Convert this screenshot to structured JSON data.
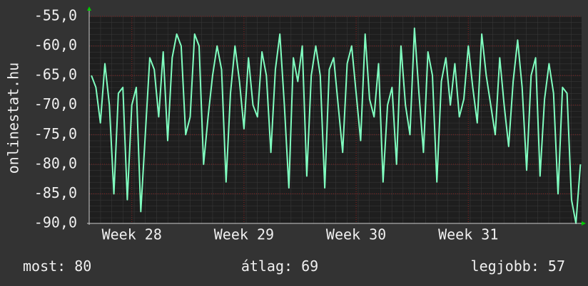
{
  "chart_data": {
    "type": "line",
    "ylabel": "onlinestat.hu",
    "series": [
      {
        "color": "#80ffc0",
        "values": [
          -65,
          -67,
          -73,
          -63,
          -70,
          -85,
          -68,
          -67,
          -86,
          -70,
          -67,
          -88,
          -75,
          -62,
          -64,
          -72,
          -61,
          -76,
          -62,
          -58,
          -60,
          -75,
          -72,
          -58,
          -60,
          -80,
          -72,
          -65,
          -60,
          -64,
          -83,
          -68,
          -60,
          -66,
          -74,
          -62,
          -70,
          -72,
          -61,
          -65,
          -78,
          -64,
          -58,
          -70,
          -84,
          -62,
          -66,
          -60,
          -82,
          -65,
          -60,
          -65,
          -84,
          -64,
          -62,
          -70,
          -78,
          -63,
          -60,
          -68,
          -76,
          -58,
          -69,
          -72,
          -63,
          -83,
          -70,
          -67,
          -80,
          -60,
          -70,
          -75,
          -57,
          -68,
          -78,
          -61,
          -65,
          -83,
          -66,
          -62,
          -70,
          -63,
          -72,
          -69,
          -60,
          -67,
          -73,
          -58,
          -65,
          -70,
          -75,
          -62,
          -70,
          -77,
          -66,
          -59,
          -67,
          -81,
          -65,
          -62,
          -82,
          -69,
          -63,
          -68,
          -85,
          -67,
          -68,
          -86,
          -90,
          -80
        ]
      }
    ],
    "x": [
      27.64,
      27.68,
      27.72,
      27.76,
      27.8,
      27.84,
      27.88,
      27.92,
      27.96,
      28,
      28.04,
      28.08,
      28.12,
      28.16,
      28.2,
      28.24,
      28.28,
      28.32,
      28.36,
      28.4,
      28.44,
      28.48,
      28.52,
      28.56,
      28.6,
      28.64,
      28.68,
      28.72,
      28.76,
      28.8,
      28.84,
      28.88,
      28.92,
      28.96,
      29,
      29.04,
      29.08,
      29.12,
      29.16,
      29.2,
      29.24,
      29.28,
      29.32,
      29.36,
      29.4,
      29.44,
      29.48,
      29.52,
      29.56,
      29.6,
      29.64,
      29.68,
      29.72,
      29.76,
      29.8,
      29.84,
      29.88,
      29.92,
      29.96,
      30,
      30.04,
      30.08,
      30.12,
      30.16,
      30.2,
      30.24,
      30.28,
      30.32,
      30.36,
      30.4,
      30.44,
      30.48,
      30.52,
      30.56,
      30.6,
      30.64,
      30.68,
      30.72,
      30.76,
      30.8,
      30.84,
      30.88,
      30.92,
      30.96,
      31,
      31.04,
      31.08,
      31.12,
      31.16,
      31.2,
      31.24,
      31.28,
      31.32,
      31.36,
      31.4,
      31.44,
      31.48,
      31.52,
      31.56,
      31.6,
      31.64,
      31.68,
      31.72,
      31.76,
      31.8,
      31.84,
      31.88,
      31.92,
      31.96,
      32
    ],
    "xlim": [
      27.62,
      32.01
    ],
    "xticks": [
      {
        "value": 28,
        "label": "Week 28"
      },
      {
        "value": 29,
        "label": "Week 29"
      },
      {
        "value": 30,
        "label": "Week 30"
      },
      {
        "value": 31,
        "label": "Week 31"
      }
    ],
    "ylim": [
      -90,
      -55
    ],
    "yticks": [
      {
        "value": -90,
        "label": "-90,0"
      },
      {
        "value": -85,
        "label": "-85,0"
      },
      {
        "value": -80,
        "label": "-80,0"
      },
      {
        "value": -75,
        "label": "-75,0"
      },
      {
        "value": -70,
        "label": "-70,0"
      },
      {
        "value": -65,
        "label": "-65,0"
      },
      {
        "value": -60,
        "label": "-60,0"
      },
      {
        "value": -55,
        "label": "-55,0"
      }
    ],
    "grid": true,
    "footer": [
      "most: 80",
      "átlag: 69",
      "legjobb: 57"
    ]
  }
}
